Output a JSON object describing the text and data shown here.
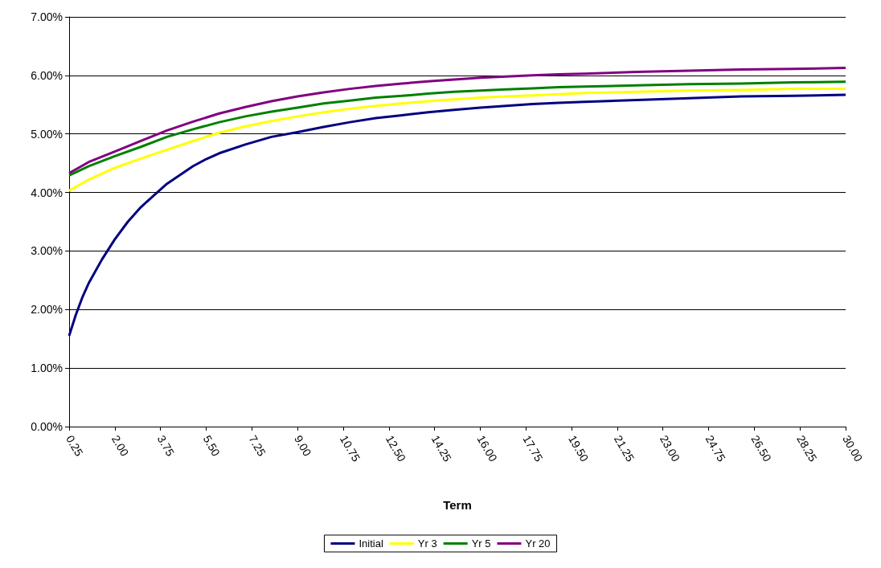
{
  "chart_data": {
    "type": "line",
    "xlabel": "Term",
    "xlim": [
      0.25,
      30
    ],
    "xticks": [
      {
        "value": 0.25,
        "label": "0.25"
      },
      {
        "value": 2,
        "label": "2.00"
      },
      {
        "value": 3.75,
        "label": "3.75"
      },
      {
        "value": 5.5,
        "label": "5.50"
      },
      {
        "value": 7.25,
        "label": "7.25"
      },
      {
        "value": 9,
        "label": "9.00"
      },
      {
        "value": 10.75,
        "label": "10.75"
      },
      {
        "value": 12.5,
        "label": "12.50"
      },
      {
        "value": 14.25,
        "label": "14.25"
      },
      {
        "value": 16,
        "label": "16.00"
      },
      {
        "value": 17.75,
        "label": "17.75"
      },
      {
        "value": 19.5,
        "label": "19.50"
      },
      {
        "value": 21.25,
        "label": "21.25"
      },
      {
        "value": 23,
        "label": "23.00"
      },
      {
        "value": 24.75,
        "label": "24.75"
      },
      {
        "value": 26.5,
        "label": "26.50"
      },
      {
        "value": 28.25,
        "label": "28.25"
      },
      {
        "value": 30,
        "label": "30.00"
      }
    ],
    "ylim": [
      0,
      7
    ],
    "yticks": [
      {
        "value": 0,
        "label": "0.00%"
      },
      {
        "value": 1,
        "label": "1.00%"
      },
      {
        "value": 2,
        "label": "2.00%"
      },
      {
        "value": 3,
        "label": "3.00%"
      },
      {
        "value": 4,
        "label": "4.00%"
      },
      {
        "value": 5,
        "label": "5.00%"
      },
      {
        "value": 6,
        "label": "6.00%"
      },
      {
        "value": 7,
        "label": "7.00%"
      }
    ],
    "grid": "y",
    "legend": "bottom",
    "marker": "none",
    "line_style": "solid",
    "series": [
      {
        "name": "Initial",
        "color": "#000080",
        "x": [
          0.25,
          0.5,
          0.75,
          1,
          1.5,
          2,
          2.5,
          3,
          3.5,
          4,
          4.5,
          5,
          5.5,
          6,
          7,
          8,
          9,
          10,
          11,
          12,
          13,
          14,
          15,
          16,
          17,
          18,
          19,
          20,
          22,
          24,
          26,
          28,
          30
        ],
        "values": [
          1.55,
          1.9,
          2.2,
          2.45,
          2.85,
          3.2,
          3.5,
          3.75,
          3.95,
          4.15,
          4.3,
          4.45,
          4.57,
          4.67,
          4.82,
          4.95,
          5.03,
          5.12,
          5.2,
          5.27,
          5.32,
          5.37,
          5.41,
          5.45,
          5.48,
          5.51,
          5.53,
          5.55,
          5.58,
          5.61,
          5.64,
          5.65,
          5.67
        ]
      },
      {
        "name": "Yr 3",
        "color": "#ffff00",
        "x": [
          0.25,
          1,
          2,
          3,
          4,
          5,
          6,
          7,
          8,
          9,
          10,
          11,
          12,
          13,
          14,
          15,
          16,
          17,
          18,
          19,
          20,
          22,
          24,
          26,
          28,
          30
        ],
        "values": [
          4.03,
          4.22,
          4.42,
          4.58,
          4.73,
          4.88,
          5.02,
          5.13,
          5.22,
          5.3,
          5.37,
          5.43,
          5.48,
          5.52,
          5.56,
          5.59,
          5.62,
          5.64,
          5.66,
          5.68,
          5.7,
          5.72,
          5.74,
          5.75,
          5.77,
          5.77
        ]
      },
      {
        "name": "Yr 5",
        "color": "#008000",
        "x": [
          0.25,
          1,
          2,
          3,
          4,
          5,
          6,
          7,
          8,
          9,
          10,
          11,
          12,
          13,
          14,
          15,
          16,
          17,
          18,
          19,
          20,
          22,
          24,
          26,
          28,
          30
        ],
        "values": [
          4.29,
          4.45,
          4.62,
          4.78,
          4.95,
          5.08,
          5.2,
          5.3,
          5.38,
          5.45,
          5.52,
          5.57,
          5.62,
          5.65,
          5.69,
          5.72,
          5.74,
          5.76,
          5.78,
          5.8,
          5.81,
          5.83,
          5.85,
          5.86,
          5.88,
          5.89
        ]
      },
      {
        "name": "Yr 20",
        "color": "#800080",
        "x": [
          0.25,
          1,
          2,
          3,
          4,
          5,
          6,
          7,
          8,
          9,
          10,
          11,
          12,
          13,
          14,
          15,
          16,
          17,
          18,
          19,
          20,
          22,
          24,
          26,
          28,
          30
        ],
        "values": [
          4.33,
          4.52,
          4.7,
          4.88,
          5.06,
          5.21,
          5.35,
          5.46,
          5.56,
          5.64,
          5.71,
          5.77,
          5.82,
          5.86,
          5.9,
          5.93,
          5.96,
          5.98,
          6.0,
          6.02,
          6.03,
          6.06,
          6.08,
          6.1,
          6.11,
          6.13
        ]
      }
    ]
  }
}
